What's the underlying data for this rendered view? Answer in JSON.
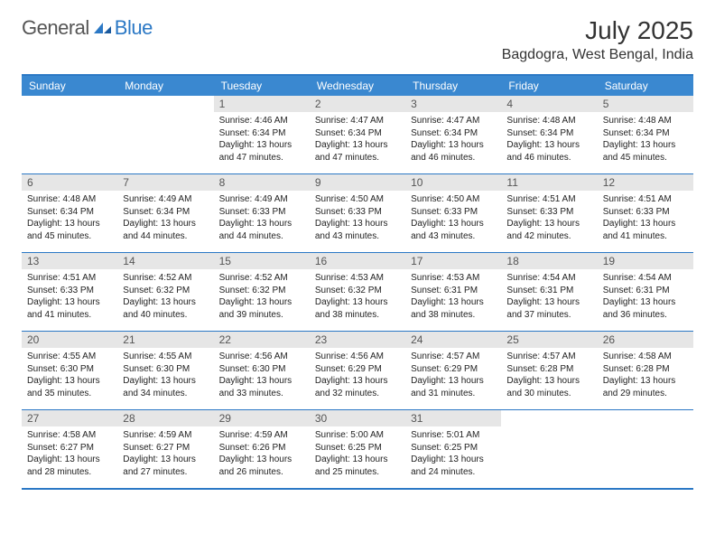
{
  "brand": {
    "general": "General",
    "blue": "Blue"
  },
  "title": "July 2025",
  "location": "Bagdogra, West Bengal, India",
  "colors": {
    "header_bg": "#3a88d0",
    "border": "#2b78c5",
    "daynum_bg": "#e6e6e6",
    "text": "#222222",
    "title_text": "#333333"
  },
  "day_headers": [
    "Sunday",
    "Monday",
    "Tuesday",
    "Wednesday",
    "Thursday",
    "Friday",
    "Saturday"
  ],
  "weeks": [
    [
      null,
      null,
      {
        "n": "1",
        "sr": "4:46 AM",
        "ss": "6:34 PM",
        "dl": "13 hours and 47 minutes."
      },
      {
        "n": "2",
        "sr": "4:47 AM",
        "ss": "6:34 PM",
        "dl": "13 hours and 47 minutes."
      },
      {
        "n": "3",
        "sr": "4:47 AM",
        "ss": "6:34 PM",
        "dl": "13 hours and 46 minutes."
      },
      {
        "n": "4",
        "sr": "4:48 AM",
        "ss": "6:34 PM",
        "dl": "13 hours and 46 minutes."
      },
      {
        "n": "5",
        "sr": "4:48 AM",
        "ss": "6:34 PM",
        "dl": "13 hours and 45 minutes."
      }
    ],
    [
      {
        "n": "6",
        "sr": "4:48 AM",
        "ss": "6:34 PM",
        "dl": "13 hours and 45 minutes."
      },
      {
        "n": "7",
        "sr": "4:49 AM",
        "ss": "6:34 PM",
        "dl": "13 hours and 44 minutes."
      },
      {
        "n": "8",
        "sr": "4:49 AM",
        "ss": "6:33 PM",
        "dl": "13 hours and 44 minutes."
      },
      {
        "n": "9",
        "sr": "4:50 AM",
        "ss": "6:33 PM",
        "dl": "13 hours and 43 minutes."
      },
      {
        "n": "10",
        "sr": "4:50 AM",
        "ss": "6:33 PM",
        "dl": "13 hours and 43 minutes."
      },
      {
        "n": "11",
        "sr": "4:51 AM",
        "ss": "6:33 PM",
        "dl": "13 hours and 42 minutes."
      },
      {
        "n": "12",
        "sr": "4:51 AM",
        "ss": "6:33 PM",
        "dl": "13 hours and 41 minutes."
      }
    ],
    [
      {
        "n": "13",
        "sr": "4:51 AM",
        "ss": "6:33 PM",
        "dl": "13 hours and 41 minutes."
      },
      {
        "n": "14",
        "sr": "4:52 AM",
        "ss": "6:32 PM",
        "dl": "13 hours and 40 minutes."
      },
      {
        "n": "15",
        "sr": "4:52 AM",
        "ss": "6:32 PM",
        "dl": "13 hours and 39 minutes."
      },
      {
        "n": "16",
        "sr": "4:53 AM",
        "ss": "6:32 PM",
        "dl": "13 hours and 38 minutes."
      },
      {
        "n": "17",
        "sr": "4:53 AM",
        "ss": "6:31 PM",
        "dl": "13 hours and 38 minutes."
      },
      {
        "n": "18",
        "sr": "4:54 AM",
        "ss": "6:31 PM",
        "dl": "13 hours and 37 minutes."
      },
      {
        "n": "19",
        "sr": "4:54 AM",
        "ss": "6:31 PM",
        "dl": "13 hours and 36 minutes."
      }
    ],
    [
      {
        "n": "20",
        "sr": "4:55 AM",
        "ss": "6:30 PM",
        "dl": "13 hours and 35 minutes."
      },
      {
        "n": "21",
        "sr": "4:55 AM",
        "ss": "6:30 PM",
        "dl": "13 hours and 34 minutes."
      },
      {
        "n": "22",
        "sr": "4:56 AM",
        "ss": "6:30 PM",
        "dl": "13 hours and 33 minutes."
      },
      {
        "n": "23",
        "sr": "4:56 AM",
        "ss": "6:29 PM",
        "dl": "13 hours and 32 minutes."
      },
      {
        "n": "24",
        "sr": "4:57 AM",
        "ss": "6:29 PM",
        "dl": "13 hours and 31 minutes."
      },
      {
        "n": "25",
        "sr": "4:57 AM",
        "ss": "6:28 PM",
        "dl": "13 hours and 30 minutes."
      },
      {
        "n": "26",
        "sr": "4:58 AM",
        "ss": "6:28 PM",
        "dl": "13 hours and 29 minutes."
      }
    ],
    [
      {
        "n": "27",
        "sr": "4:58 AM",
        "ss": "6:27 PM",
        "dl": "13 hours and 28 minutes."
      },
      {
        "n": "28",
        "sr": "4:59 AM",
        "ss": "6:27 PM",
        "dl": "13 hours and 27 minutes."
      },
      {
        "n": "29",
        "sr": "4:59 AM",
        "ss": "6:26 PM",
        "dl": "13 hours and 26 minutes."
      },
      {
        "n": "30",
        "sr": "5:00 AM",
        "ss": "6:25 PM",
        "dl": "13 hours and 25 minutes."
      },
      {
        "n": "31",
        "sr": "5:01 AM",
        "ss": "6:25 PM",
        "dl": "13 hours and 24 minutes."
      },
      null,
      null
    ]
  ],
  "labels": {
    "sunrise": "Sunrise: ",
    "sunset": "Sunset: ",
    "daylight": "Daylight: "
  }
}
